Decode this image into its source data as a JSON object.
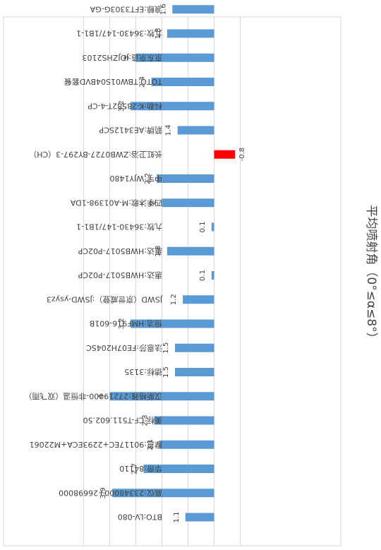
{
  "chart_data": {
    "type": "bar",
    "orientation": "rotated-180",
    "title": "平均喷射角（0°≤α≤8°）",
    "xlabel": "",
    "ylabel": "",
    "xlim": [
      -1,
      5
    ],
    "grid": true,
    "legend": "none",
    "colors": {
      "positive": "#5b9bd5",
      "negative": "#ff0000"
    },
    "categories": [
      "BTO:LV-080",
      "高仪:23348000+26698000",
      "华帝:84110",
      "摩恩:90117EC+2293ECA+M22061",
      "美标:CF-T511.602.50",
      "汉斯格雅:27219000-非恒温（双飞雨）",
      "德标:3135",
      "法恩莎:FE07H204SC",
      "恒洁:HMF916-601B",
      "JSWD（京世威登）:JSWD-ysyz3",
      "惠达:HWB5017-P02CP",
      "惠达:HWB5017-P02CP",
      "九牧:36430-147/1B1-1",
      "四季沐歌:M-A01398-1DA",
      "中宇:WJY1480",
      "长虹卫浴:ZWB0727-BY297-3（CH）",
      "箭牌:AE3412SCP",
      "科勒:K-28582T-4-CP",
      "TOTO:TBW01S04BVD套餐",
      "京东京造:JDJZHS2103",
      "九牧:36430-147/1B1-1",
      "浪鲸:EFT3303G-GA"
    ],
    "values": [
      1.1,
      3.9,
      2.7,
      2.1,
      2.3,
      4,
      1.5,
      1.5,
      3.2,
      1.2,
      0.1,
      1.8,
      0.1,
      2,
      2.2,
      -0.8,
      1.4,
      3.2,
      2.4,
      3,
      1.8,
      1.6
    ],
    "value_labels": [
      "1.1",
      "3.9",
      "2.7",
      "2.1",
      "2.3",
      "4",
      "1.5",
      "1.5",
      "3.2",
      "1.2",
      "0.1",
      "1.8",
      "0.1",
      "2",
      "2.2",
      "-0.8",
      "1.4",
      "3.2",
      "2.4",
      "3",
      "1.8",
      "1.6"
    ]
  }
}
